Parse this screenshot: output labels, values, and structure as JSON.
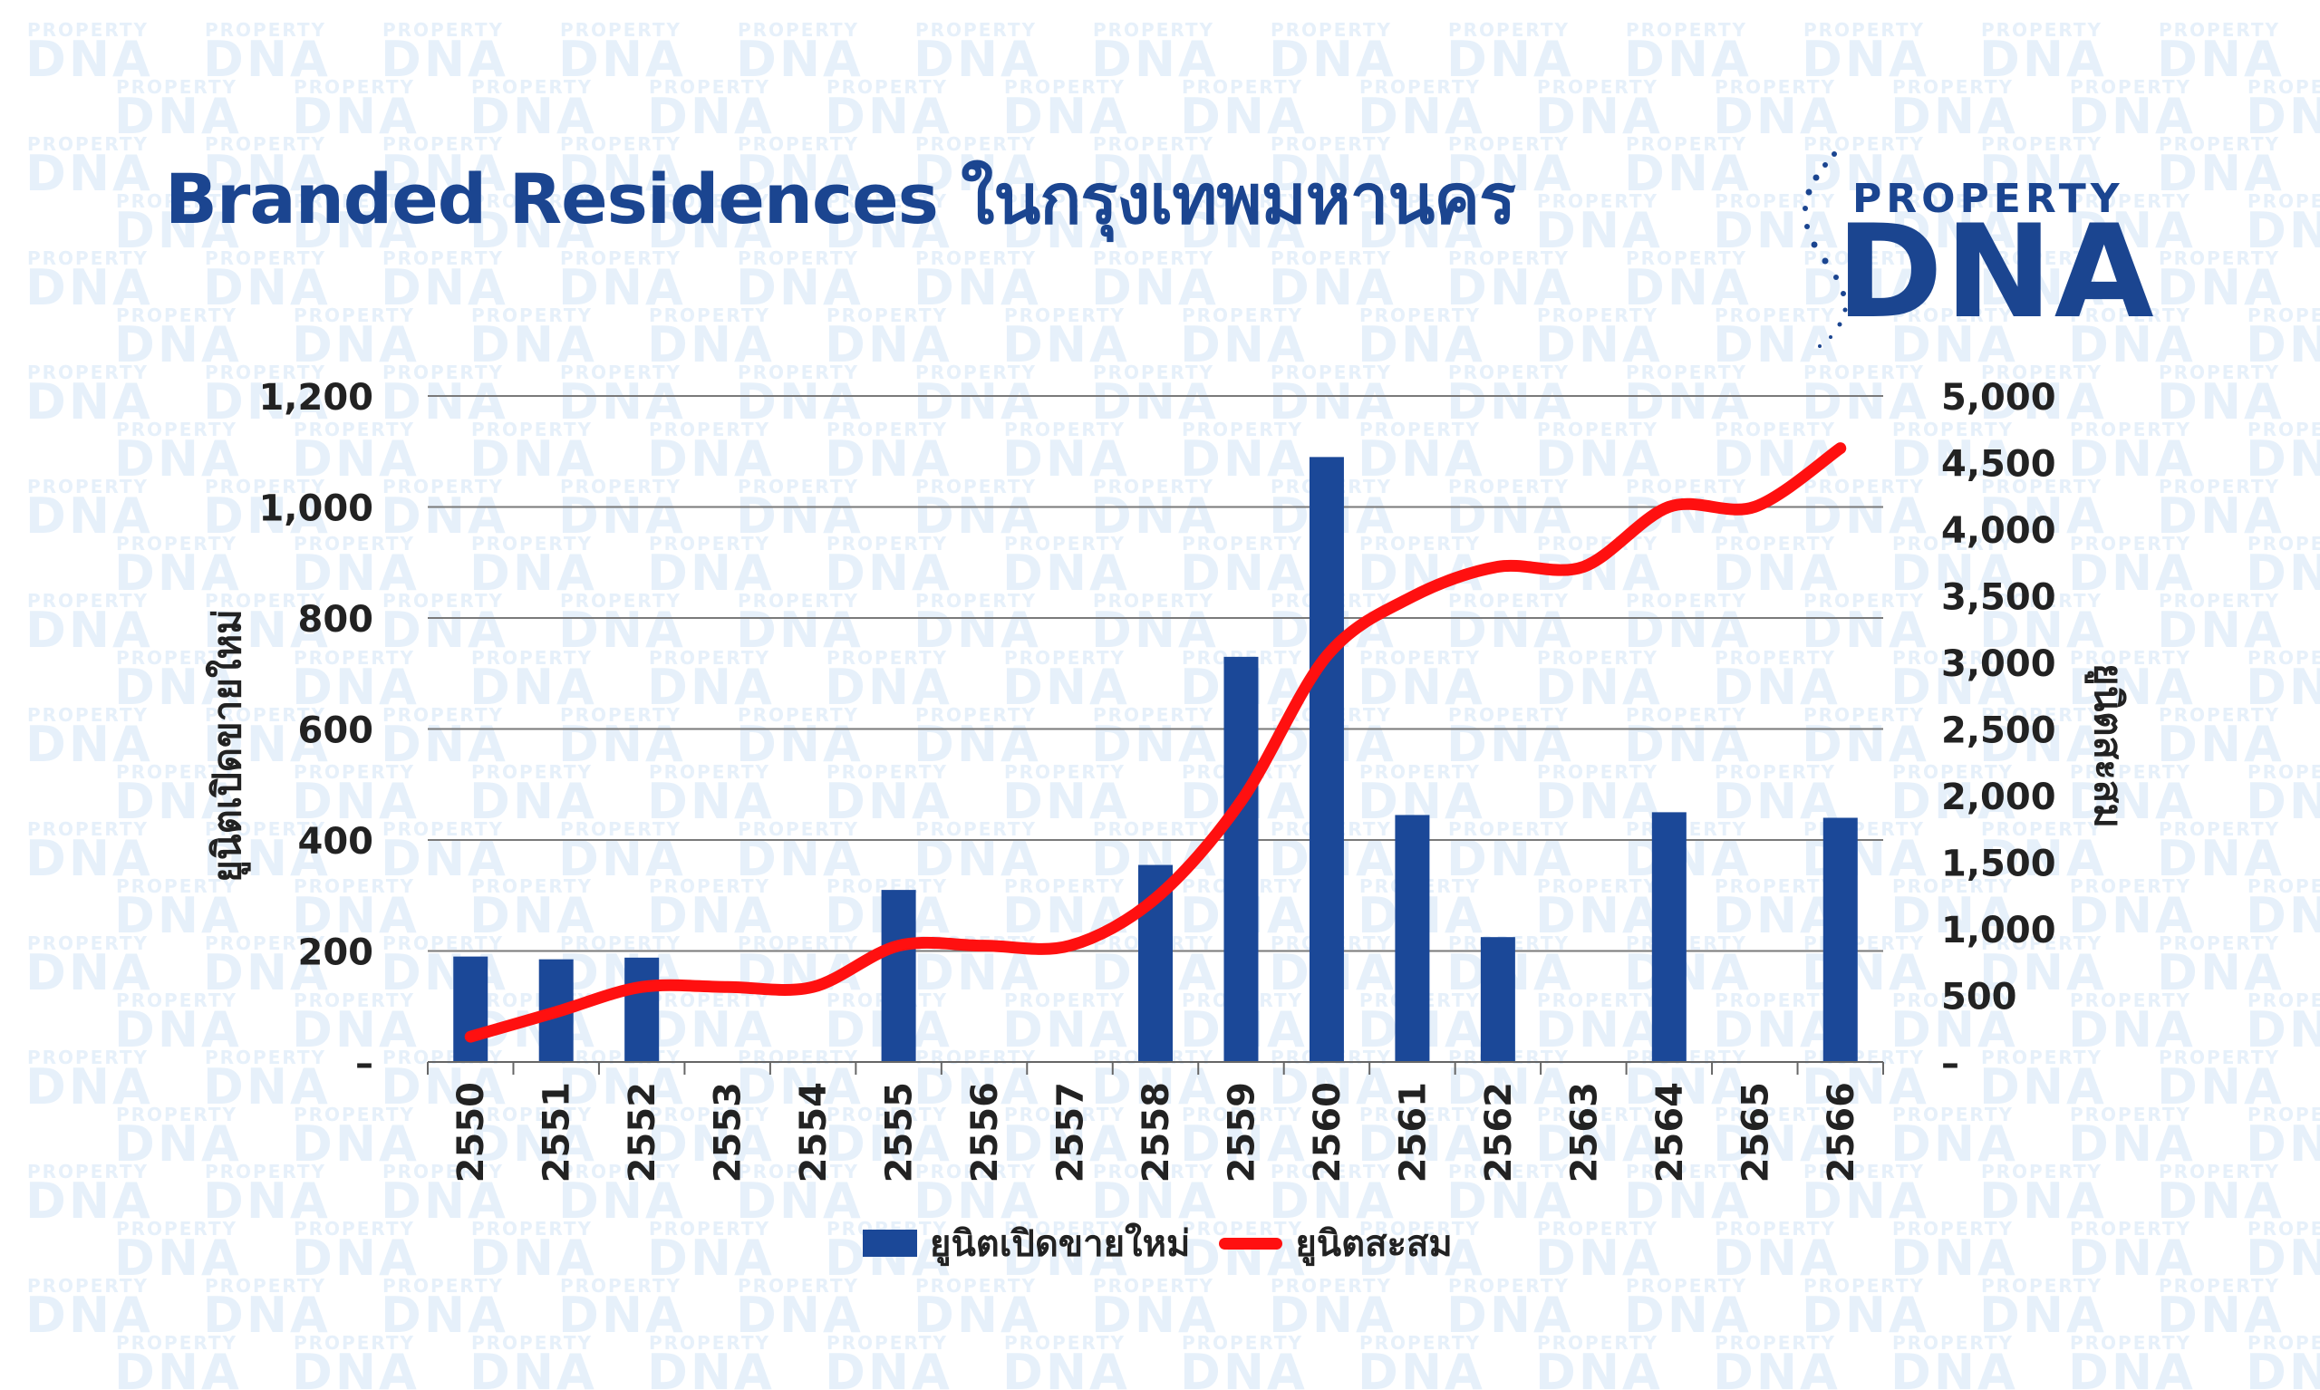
{
  "title": "Branded Residences ในกรุงเทพมหานคร",
  "logo": {
    "top_text": "PROPERTY",
    "main_text": "DNA",
    "watermark_top": "PROPERTY",
    "watermark_main": "DNA"
  },
  "colors": {
    "bar": "#1b4898",
    "line": "#ff1010",
    "title": "#1b4590",
    "grid": "#7a7a7a",
    "watermark": "#e6f0fa"
  },
  "chart_data": {
    "type": "bar",
    "categories": [
      "2550",
      "2551",
      "2552",
      "2553",
      "2554",
      "2555",
      "2556",
      "2557",
      "2558",
      "2559",
      "2560",
      "2561",
      "2562",
      "2563",
      "2564",
      "2565",
      "2566"
    ],
    "series": [
      {
        "name": "ยูนิตเปิดขายใหม่",
        "type": "bar",
        "axis": "left",
        "values": [
          190,
          185,
          188,
          0,
          0,
          310,
          0,
          0,
          355,
          730,
          1090,
          445,
          225,
          0,
          450,
          0,
          440
        ]
      },
      {
        "name": "ยูนิตสะสม",
        "type": "line",
        "axis": "right",
        "values": [
          190,
          375,
          563,
          563,
          563,
          873,
          873,
          873,
          1228,
          1958,
          3048,
          3493,
          3718,
          3718,
          4168,
          4168,
          4608
        ]
      }
    ],
    "ylabel": "ยูนิตเปิดขายใหม่",
    "y2label": "ยูนิตสะสม",
    "ylim": [
      0,
      1200
    ],
    "y2lim": [
      0,
      5000
    ],
    "yticks": [
      "–",
      "200",
      "400",
      "600",
      "800",
      "1,000",
      "1,200"
    ],
    "y2ticks": [
      "–",
      "500",
      "1,000",
      "1,500",
      "2,000",
      "2,500",
      "3,000",
      "3,500",
      "4,000",
      "4,500",
      "5,000"
    ],
    "grid": true,
    "legend_position": "bottom"
  }
}
